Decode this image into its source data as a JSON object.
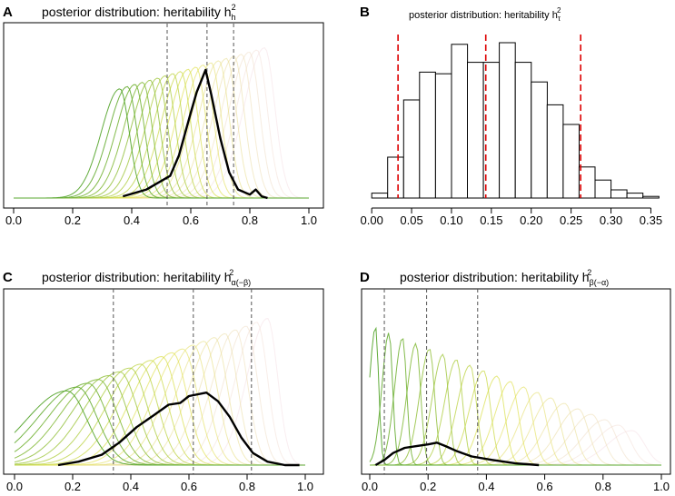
{
  "figure": {
    "panels": [
      {
        "label": "A",
        "title": "posterior distribution: heritability h",
        "sym_sup": "2",
        "sym_sub": "h"
      },
      {
        "label": "B",
        "title": "posterior distribution: heritability h",
        "sym_sup": "2",
        "sym_sub": "τ"
      },
      {
        "label": "C",
        "title": "posterior distribution: heritability h",
        "sym_sup": "2",
        "sym_sub": "α(−β)"
      },
      {
        "label": "D",
        "title": "posterior distribution: heritability h",
        "sym_sup": "2",
        "sym_sub": "β(−α)"
      }
    ],
    "colors": {
      "gradient_start": "#5aa832",
      "gradient_mid": "#e0e24a",
      "gradient_end": "#f2d8de",
      "bold_line": "#000000",
      "dashed_line": "#555555",
      "ci_line": "#dd0000",
      "bars_stroke": "#000000",
      "axis": "#000000"
    }
  },
  "chart_data": [
    {
      "panel": "A",
      "type": "line",
      "title": "posterior distribution: heritability h²_h",
      "xlim": [
        0.0,
        1.0
      ],
      "x_ticks": [
        "0.0",
        "0.2",
        "0.4",
        "0.6",
        "0.8",
        "1.0"
      ],
      "x_tick_values": [
        0,
        0.2,
        0.4,
        0.6,
        0.8,
        1.0
      ],
      "n_curves": 20,
      "curve_peak_start": 0.36,
      "curve_peak_end": 0.85,
      "curve_width_start": 0.045,
      "curve_width_end": 0.05,
      "curve_height_start": 0.64,
      "curve_height_end": 0.88,
      "bold_curve": {
        "xmin": 0.37,
        "xmax": 0.86,
        "points": [
          [
            0.37,
            0.01
          ],
          [
            0.45,
            0.05
          ],
          [
            0.5,
            0.1
          ],
          [
            0.53,
            0.13
          ],
          [
            0.56,
            0.25
          ],
          [
            0.6,
            0.5
          ],
          [
            0.62,
            0.62
          ],
          [
            0.65,
            0.75
          ],
          [
            0.67,
            0.6
          ],
          [
            0.7,
            0.35
          ],
          [
            0.73,
            0.15
          ],
          [
            0.76,
            0.05
          ],
          [
            0.8,
            0.02
          ],
          [
            0.82,
            0.05
          ],
          [
            0.84,
            0.01
          ],
          [
            0.86,
            0.0
          ]
        ]
      },
      "dashed_x": [
        0.52,
        0.655,
        0.745
      ]
    },
    {
      "panel": "B",
      "type": "histogram",
      "title": "posterior distribution: heritability h²_τ",
      "xlim": [
        -0.015,
        0.37
      ],
      "x_ticks": [
        "0.00",
        "0.05",
        "0.10",
        "0.15",
        "0.20",
        "0.25",
        "0.30",
        "0.35"
      ],
      "x_tick_values": [
        0,
        0.05,
        0.1,
        0.15,
        0.2,
        0.25,
        0.3,
        0.35
      ],
      "bin_edges": [
        0.0,
        0.02,
        0.04,
        0.06,
        0.08,
        0.1,
        0.12,
        0.14,
        0.16,
        0.18,
        0.2,
        0.22,
        0.24,
        0.26,
        0.28,
        0.3,
        0.32,
        0.34,
        0.36
      ],
      "counts": [
        3,
        25,
        60,
        77,
        76,
        94,
        83,
        83,
        95,
        83,
        71,
        57,
        45,
        19,
        11,
        5,
        3,
        1
      ],
      "ylim": [
        0,
        100
      ],
      "ci_lines": [
        0.033,
        0.262
      ],
      "mean_line": 0.143
    },
    {
      "panel": "C",
      "type": "line",
      "title": "posterior distribution: heritability h²_α(−β)",
      "xlim": [
        0.0,
        1.0
      ],
      "x_ticks": [
        "0.0",
        "0.2",
        "0.4",
        "0.6",
        "0.8",
        "1.0"
      ],
      "x_tick_values": [
        0,
        0.2,
        0.4,
        0.6,
        0.8,
        1.0
      ],
      "n_curves": 20,
      "curve_peak_start": 0.18,
      "curve_peak_end": 0.87,
      "curve_width_start": 0.1,
      "curve_width_end": 0.05,
      "curve_height_start": 0.43,
      "curve_height_end": 0.85,
      "bold_curve": {
        "xmin": 0.15,
        "xmax": 0.98,
        "points": [
          [
            0.15,
            0.0
          ],
          [
            0.22,
            0.02
          ],
          [
            0.3,
            0.06
          ],
          [
            0.36,
            0.13
          ],
          [
            0.42,
            0.22
          ],
          [
            0.48,
            0.29
          ],
          [
            0.53,
            0.35
          ],
          [
            0.57,
            0.36
          ],
          [
            0.6,
            0.4
          ],
          [
            0.66,
            0.42
          ],
          [
            0.7,
            0.37
          ],
          [
            0.74,
            0.28
          ],
          [
            0.78,
            0.16
          ],
          [
            0.82,
            0.07
          ],
          [
            0.87,
            0.02
          ],
          [
            0.93,
            0.0
          ],
          [
            0.98,
            0.0
          ]
        ]
      },
      "dashed_x": [
        0.34,
        0.615,
        0.815
      ]
    },
    {
      "panel": "D",
      "type": "line",
      "title": "posterior distribution: heritability h²_β(−α)",
      "xlim": [
        0.0,
        1.0
      ],
      "x_ticks": [
        "0.0",
        "0.2",
        "0.4",
        "0.6",
        "0.8",
        "1.0"
      ],
      "x_tick_values": [
        0,
        0.2,
        0.4,
        0.6,
        0.8,
        1.0
      ],
      "n_curves": 20,
      "curve_peak_start": 0.02,
      "curve_peak_end": 0.9,
      "curve_width_start": 0.015,
      "curve_width_end": 0.06,
      "curve_height_start": 0.8,
      "curve_height_end": 0.2,
      "bold_curve": {
        "xmin": 0.02,
        "xmax": 0.58,
        "points": [
          [
            0.02,
            0.0
          ],
          [
            0.05,
            0.03
          ],
          [
            0.08,
            0.07
          ],
          [
            0.12,
            0.1
          ],
          [
            0.16,
            0.11
          ],
          [
            0.2,
            0.12
          ],
          [
            0.23,
            0.13
          ],
          [
            0.26,
            0.11
          ],
          [
            0.3,
            0.08
          ],
          [
            0.35,
            0.05
          ],
          [
            0.42,
            0.03
          ],
          [
            0.5,
            0.01
          ],
          [
            0.58,
            0.0
          ]
        ]
      },
      "dashed_x": [
        0.05,
        0.195,
        0.37
      ]
    }
  ]
}
